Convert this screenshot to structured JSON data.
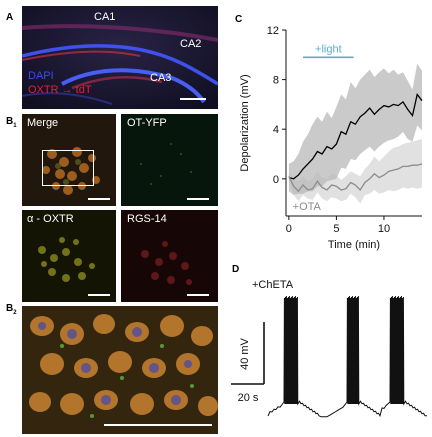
{
  "panel_labels": {
    "a": "A",
    "b1_letter": "B",
    "b1_sub": "1",
    "b2_letter": "B",
    "b2_sub": "2",
    "c": "C",
    "d": "D"
  },
  "panel_a": {
    "region_ca1": "CA1",
    "region_ca2": "CA2",
    "region_ca3": "CA3",
    "legend_dapi": "DAPI",
    "legend_oxtr": "OXTR → tdT",
    "colors": {
      "dapi": "#3c4cf0",
      "oxtr": "#d8282e"
    }
  },
  "panel_b1": {
    "merge": "Merge",
    "ot_yfp": "OT-YFP",
    "oxtr": "α - OXTR",
    "rgs14": "RGS-14"
  },
  "chart_data": [
    {
      "type": "line",
      "title": "",
      "xlabel": "Time (min)",
      "ylabel": "Depolarization (mV)",
      "xlim": [
        -0.3,
        14
      ],
      "ylim": [
        -3,
        12
      ],
      "xticks": [
        0,
        5,
        10
      ],
      "yticks": [
        0,
        4,
        8,
        12
      ],
      "grid": false,
      "legend": "none",
      "annotations": [
        {
          "text": "+light",
          "color": "#5aaad6",
          "bar_x": [
            1.5,
            6.8
          ],
          "bar_y": 9.8
        },
        {
          "text": "+OTA",
          "color": "#8c8c8c"
        }
      ],
      "series": [
        {
          "color": "#000000",
          "band_color": "#b8b8b8",
          "x": [
            0,
            0.5,
            1,
            1.5,
            2,
            2.5,
            3,
            3.5,
            4,
            4.5,
            5,
            5.5,
            6,
            6.5,
            7,
            7.5,
            8,
            8.5,
            9,
            9.5,
            10,
            10.5,
            11,
            11.5,
            12,
            12.5,
            13,
            13.5,
            14
          ],
          "values": [
            0.1,
            0.0,
            0.3,
            0.8,
            1.2,
            1.6,
            2.2,
            2.0,
            2.6,
            2.4,
            2.8,
            3.8,
            3.6,
            4.6,
            4.4,
            5.0,
            5.3,
            5.7,
            5.2,
            5.6,
            5.9,
            5.8,
            6.0,
            5.9,
            6.2,
            5.6,
            5.1,
            6.8,
            6.3
          ],
          "upper": [
            1.2,
            1.4,
            2.0,
            3.0,
            3.6,
            4.4,
            5.0,
            4.6,
            5.4,
            4.9,
            5.8,
            6.8,
            6.4,
            7.8,
            7.3,
            8.0,
            8.4,
            8.8,
            8.2,
            8.6,
            8.9,
            8.5,
            8.8,
            8.4,
            8.6,
            7.9,
            7.2,
            9.3,
            8.7
          ],
          "lower": [
            -1.0,
            -1.3,
            -1.2,
            -1.2,
            -1.0,
            -1.0,
            -0.6,
            -0.6,
            -0.2,
            -0.1,
            0.0,
            0.9,
            0.8,
            1.6,
            1.5,
            2.0,
            2.3,
            2.6,
            2.2,
            2.6,
            2.9,
            3.1,
            3.2,
            3.4,
            3.8,
            3.2,
            3.0,
            4.3,
            3.9
          ]
        },
        {
          "color": "#8c8c8c",
          "band_color": "#d9d9d9",
          "x": [
            0,
            0.5,
            1,
            1.5,
            2,
            2.5,
            3,
            3.5,
            4,
            4.5,
            5,
            5.5,
            6,
            6.5,
            7,
            7.5,
            8,
            8.5,
            9,
            9.5,
            10,
            10.5,
            11,
            11.5,
            12,
            12.5,
            13,
            13.5,
            14
          ],
          "values": [
            0.2,
            -0.6,
            -1.0,
            -0.5,
            -0.9,
            -0.8,
            -0.2,
            -0.7,
            -0.9,
            -0.5,
            -0.6,
            -0.9,
            -0.8,
            -0.3,
            -0.5,
            -0.9,
            -0.3,
            0.0,
            0.4,
            0.1,
            0.3,
            0.6,
            0.7,
            0.8,
            1.0,
            1.0,
            1.1,
            1.1,
            1.2
          ],
          "upper": [
            0.5,
            0.0,
            -0.2,
            0.2,
            -0.2,
            0.0,
            0.6,
            0.1,
            0.0,
            0.4,
            0.3,
            -0.1,
            0.2,
            0.6,
            0.4,
            0.2,
            0.8,
            1.2,
            1.8,
            1.4,
            1.8,
            2.2,
            2.5,
            2.6,
            2.8,
            2.9,
            3.0,
            3.1,
            3.2
          ],
          "lower": [
            -0.1,
            -1.3,
            -1.8,
            -1.3,
            -1.6,
            -1.7,
            -1.1,
            -1.6,
            -1.8,
            -1.5,
            -1.6,
            -1.8,
            -1.7,
            -1.2,
            -1.5,
            -2.0,
            -1.3,
            -1.2,
            -0.9,
            -1.2,
            -1.1,
            -0.9,
            -1.0,
            -0.9,
            -0.7,
            -0.8,
            -0.7,
            -0.8,
            -0.7
          ]
        }
      ]
    },
    {
      "type": "line",
      "title": "",
      "xlabel": "",
      "ylabel": "",
      "annotations": [
        {
          "text": "+ChETA"
        }
      ],
      "scale_bars": {
        "voltage": "40 mV",
        "time": "20 s"
      },
      "bursts": 3,
      "color": "#111111"
    }
  ]
}
